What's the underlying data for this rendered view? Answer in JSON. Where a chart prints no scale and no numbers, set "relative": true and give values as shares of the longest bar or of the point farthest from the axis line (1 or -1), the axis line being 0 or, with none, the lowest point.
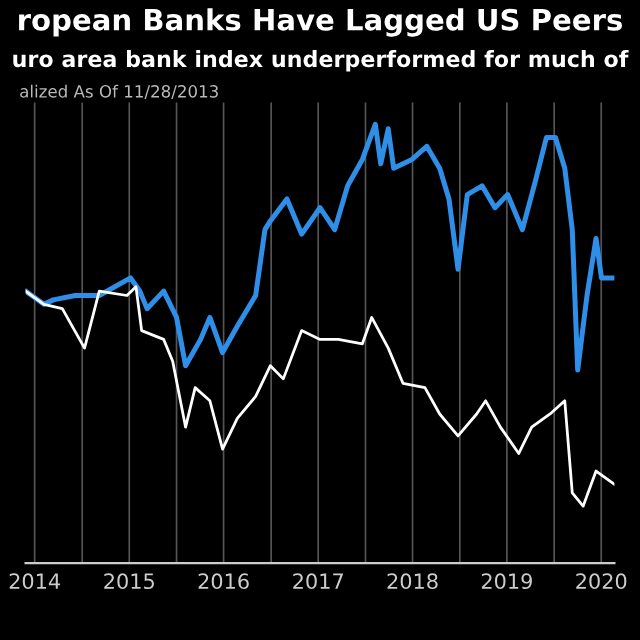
{
  "chart_data": {
    "type": "line",
    "title": "ropean Banks Have Lagged US Peers",
    "subtitle": "uro area bank index underperformed for much of",
    "annotations": [
      "alized As Of 11/28/2013"
    ],
    "relative": true,
    "grid": "x",
    "xlim": [
      "2014-05-27",
      "2020-08-21"
    ],
    "xticks": [
      {
        "value": "2014-07-01",
        "label": "2014"
      },
      {
        "value": "2015-01-01",
        "label": null
      },
      {
        "value": "2015-07-02",
        "label": "2015"
      },
      {
        "value": "2016-01-01",
        "label": null
      },
      {
        "value": "2016-07-01",
        "label": "2016"
      },
      {
        "value": "2017-01-01",
        "label": null
      },
      {
        "value": "2017-07-02",
        "label": "2017"
      },
      {
        "value": "2018-01-01",
        "label": null
      },
      {
        "value": "2018-07-02",
        "label": "2018"
      },
      {
        "value": "2019-01-01",
        "label": null
      },
      {
        "value": "2019-07-02",
        "label": "2019"
      },
      {
        "value": "2020-01-01",
        "label": null
      },
      {
        "value": "2020-07-01",
        "label": "2020"
      }
    ],
    "series": [
      {
        "color": "#ffffff",
        "x": [
          "2014-05-27",
          "2014-08-06",
          "2014-10-16",
          "2015-01-10",
          "2015-03-08",
          "2015-06-23",
          "2015-07-28",
          "2015-08-19",
          "2015-11-12",
          "2015-12-17",
          "2016-02-05",
          "2016-03-13",
          "2016-05-09",
          "2016-06-27",
          "2016-08-23",
          "2016-11-02",
          "2016-12-29",
          "2017-02-17",
          "2017-04-29",
          "2017-07-09",
          "2017-09-18",
          "2017-12-20",
          "2018-01-25",
          "2018-03-30",
          "2018-05-26",
          "2018-08-19",
          "2018-10-15",
          "2018-12-25",
          "2019-03-07",
          "2019-04-11",
          "2019-06-07",
          "2019-08-17",
          "2019-10-06",
          "2019-12-16",
          "2020-02-11",
          "2020-03-11",
          "2020-04-22",
          "2020-06-11",
          "2020-08-21"
        ],
        "values": [
          0.62,
          0.59,
          0.58,
          0.49,
          0.62,
          0.61,
          0.63,
          0.53,
          0.51,
          0.46,
          0.31,
          0.4,
          0.37,
          0.26,
          0.33,
          0.38,
          0.45,
          0.42,
          0.53,
          0.51,
          0.51,
          0.5,
          0.56,
          0.49,
          0.41,
          0.4,
          0.34,
          0.29,
          0.34,
          0.37,
          0.31,
          0.25,
          0.31,
          0.34,
          0.37,
          0.16,
          0.13,
          0.21,
          0.18
        ]
      },
      {
        "color": "#2f8fe8",
        "x": [
          "2014-05-27",
          "2014-08-06",
          "2014-09-11",
          "2014-12-05",
          "2015-03-08",
          "2015-07-07",
          "2015-08-12",
          "2015-09-09",
          "2015-11-12",
          "2016-01-01",
          "2016-02-05",
          "2016-04-03",
          "2016-05-09",
          "2016-06-27",
          "2016-08-23",
          "2016-11-02",
          "2016-12-08",
          "2016-12-29",
          "2017-03-03",
          "2017-04-29",
          "2017-07-09",
          "2017-09-04",
          "2017-10-24",
          "2017-12-20",
          "2018-02-08",
          "2018-03-01",
          "2018-03-30",
          "2018-04-20",
          "2018-06-30",
          "2018-08-26",
          "2018-10-15",
          "2018-11-20",
          "2018-12-25",
          "2019-01-30",
          "2019-03-28",
          "2019-05-17",
          "2019-07-05",
          "2019-08-31",
          "2019-10-20",
          "2019-12-02",
          "2020-01-06",
          "2020-02-11",
          "2020-03-11",
          "2020-04-01",
          "2020-05-07",
          "2020-06-11",
          "2020-07-02",
          "2020-08-21"
        ],
        "values": [
          0.62,
          0.59,
          0.6,
          0.61,
          0.61,
          0.65,
          0.62,
          0.58,
          0.62,
          0.56,
          0.45,
          0.51,
          0.56,
          0.48,
          0.54,
          0.61,
          0.76,
          0.78,
          0.83,
          0.75,
          0.81,
          0.76,
          0.86,
          0.92,
          1.0,
          0.91,
          0.99,
          0.9,
          0.92,
          0.95,
          0.9,
          0.83,
          0.67,
          0.84,
          0.86,
          0.81,
          0.84,
          0.76,
          0.87,
          0.97,
          0.97,
          0.9,
          0.76,
          0.44,
          0.61,
          0.74,
          0.65,
          0.65
        ]
      }
    ]
  }
}
